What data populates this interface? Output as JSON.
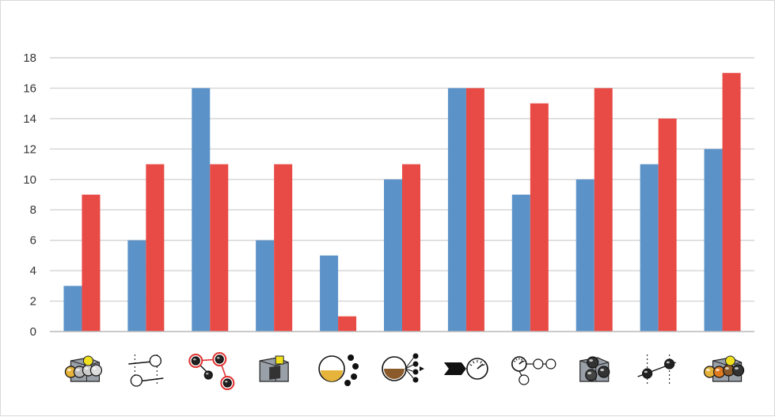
{
  "chart_data": {
    "type": "bar",
    "categories": [
      "resource-balls-icon",
      "comparison-gates-icon",
      "linked-nodes-icon",
      "chart-box-icon",
      "yellow-dots-icon",
      "brown-fanout-icon",
      "gauge-arrow-icon",
      "gauge-flow-icon",
      "box-balls-icon",
      "dotted-line-icon",
      "colored-balls-box-icon"
    ],
    "series": [
      {
        "color": "#5b93c9",
        "values": [
          3,
          6,
          16,
          6,
          5,
          10,
          16,
          9,
          10,
          11,
          12
        ]
      },
      {
        "color": "#e84a45",
        "values": [
          9,
          11,
          11,
          11,
          1,
          11,
          16,
          15,
          16,
          14,
          17
        ]
      }
    ],
    "yticks": [
      "0",
      "2",
      "4",
      "6",
      "8",
      "10",
      "12",
      "14",
      "16",
      "18"
    ],
    "ylim": [
      0,
      18
    ],
    "grid": true,
    "legend": "none"
  }
}
